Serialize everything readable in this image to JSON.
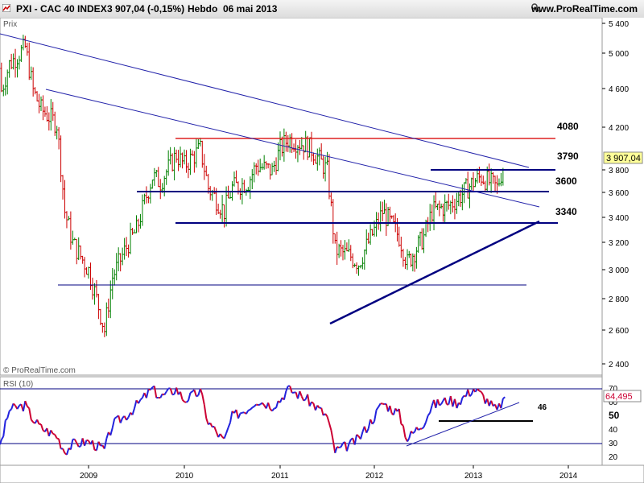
{
  "header": {
    "instrument": "PXI - CAC 40 INDEX",
    "price_change": "3 907,04 (-0,15%)",
    "period": "Hebdo  06 mai 2013",
    "site": "www.ProRealTime.com"
  },
  "price_panel": {
    "label": "Prix",
    "watermark": "© ProRealTime.com",
    "current_price_tag": "3 907,04",
    "y_axis_ticks": [
      "5 400",
      "5 000",
      "4 600",
      "4 200",
      "3 800",
      "3 600",
      "3 400",
      "3 200",
      "3 000",
      "2 800",
      "2 600",
      "2 400"
    ],
    "levels": [
      {
        "value": 4080,
        "text": "4080",
        "color": "#dd2222"
      },
      {
        "value": 3790,
        "text": "3790",
        "color": "#000080"
      },
      {
        "value": 3600,
        "text": "3600",
        "color": "#000080"
      },
      {
        "value": 3340,
        "text": "3340",
        "color": "#000080"
      },
      {
        "value": 2890,
        "text": "",
        "color": "#000080"
      }
    ]
  },
  "rsi_panel": {
    "label": "RSI (10)",
    "value_tag": "64,495",
    "level_label": "46",
    "y_axis_ticks": [
      "70",
      "60",
      "50",
      "40",
      "30",
      "20"
    ]
  },
  "x_axis": {
    "ticks": [
      "2009",
      "2010",
      "2011",
      "2012",
      "2013",
      "2014"
    ]
  },
  "colors": {
    "up_bar": "#008000",
    "down_bar": "#cc0000",
    "resistance": "#dd2222",
    "support": "#000080",
    "rsi_up": "#2222dd",
    "rsi_down": "#cc0033",
    "tag_bg": "#ffff99"
  },
  "chart_data": [
    {
      "type": "ohlc",
      "series_name": "CAC 40 INDEX",
      "y_scale": "log",
      "ylim": [
        2350,
        5500
      ],
      "x_range": [
        "2008-01",
        "2014-03"
      ],
      "x_dates": [
        "2008-01",
        "2008-02",
        "2008-03",
        "2008-05",
        "2008-06",
        "2008-07",
        "2008-09",
        "2008-10",
        "2008-11",
        "2009-01",
        "2009-03",
        "2009-04",
        "2009-06",
        "2009-07",
        "2009-09",
        "2009-10",
        "2009-12",
        "2010-01",
        "2010-03",
        "2010-04",
        "2010-06",
        "2010-07",
        "2010-09",
        "2010-10",
        "2010-12",
        "2011-01",
        "2011-02",
        "2011-04",
        "2011-05",
        "2011-07",
        "2011-08",
        "2011-10",
        "2011-11",
        "2012-01",
        "2012-02",
        "2012-04",
        "2012-05",
        "2012-07",
        "2012-08",
        "2012-10",
        "2012-11",
        "2013-01",
        "2013-02",
        "2013-04",
        "2013-05"
      ],
      "close": [
        4850,
        4600,
        4900,
        5100,
        4600,
        4400,
        4250,
        3450,
        3200,
        3000,
        2600,
        2950,
        3200,
        3300,
        3750,
        3700,
        3950,
        3850,
        4000,
        3650,
        3450,
        3650,
        3700,
        3850,
        3800,
        4000,
        4100,
        4050,
        4000,
        3800,
        3150,
        3100,
        3050,
        3300,
        3450,
        3250,
        3050,
        3250,
        3450,
        3500,
        3550,
        3700,
        3750,
        3650,
        3900
      ],
      "annotations": [
        "4080",
        "3790",
        "3600",
        "3340"
      ]
    },
    {
      "type": "line",
      "title": "RSI (10)",
      "ylim": [
        15,
        75
      ],
      "x_dates": [
        "2008-01",
        "2008-02",
        "2008-03",
        "2008-05",
        "2008-06",
        "2008-07",
        "2008-09",
        "2008-10",
        "2008-11",
        "2009-01",
        "2009-03",
        "2009-04",
        "2009-06",
        "2009-07",
        "2009-09",
        "2009-10",
        "2009-12",
        "2010-01",
        "2010-03",
        "2010-04",
        "2010-06",
        "2010-07",
        "2010-09",
        "2010-10",
        "2010-12",
        "2011-01",
        "2011-02",
        "2011-04",
        "2011-05",
        "2011-07",
        "2011-08",
        "2011-10",
        "2011-11",
        "2012-01",
        "2012-02",
        "2012-04",
        "2012-05",
        "2012-07",
        "2012-08",
        "2012-10",
        "2012-11",
        "2013-01",
        "2013-02",
        "2013-04",
        "2013-05"
      ],
      "values": [
        27,
        32,
        55,
        58,
        48,
        42,
        36,
        25,
        30,
        32,
        26,
        44,
        52,
        58,
        70,
        64,
        70,
        62,
        68,
        46,
        32,
        50,
        56,
        62,
        58,
        62,
        70,
        64,
        60,
        50,
        25,
        30,
        34,
        50,
        60,
        52,
        34,
        46,
        58,
        62,
        60,
        70,
        66,
        54,
        64
      ],
      "annotations": [
        "46"
      ]
    }
  ]
}
